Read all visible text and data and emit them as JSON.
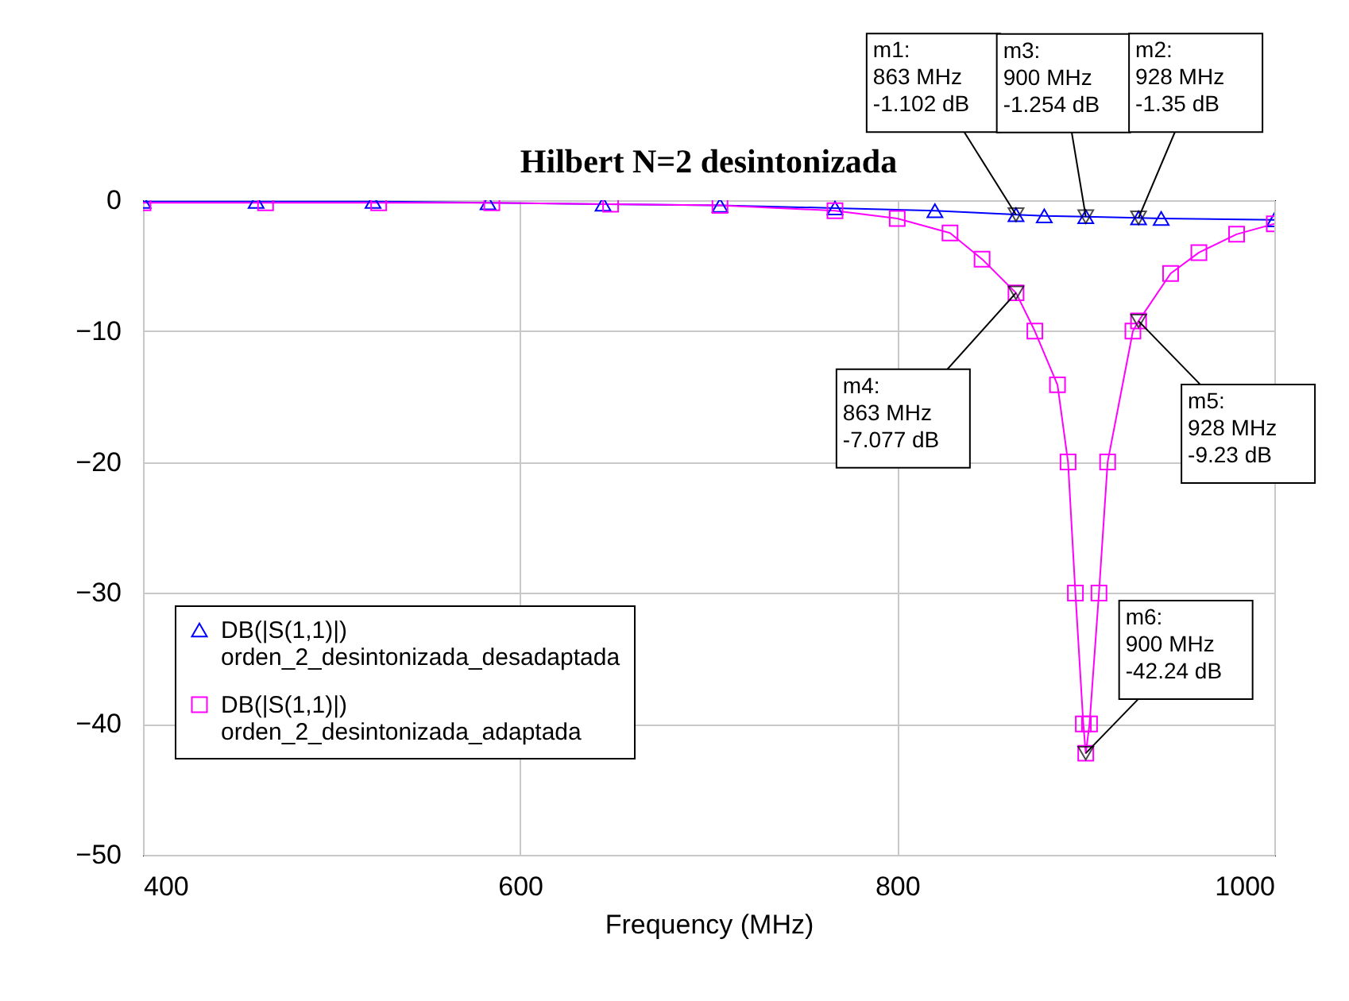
{
  "chart_data": {
    "type": "line",
    "title": "Hilbert N=2 desintonizada",
    "xlabel": "Frequency (MHz)",
    "xlim": [
      400,
      1000
    ],
    "xticks": [
      400,
      600,
      800,
      1000
    ],
    "ylim": [
      -50,
      0
    ],
    "yticks": [
      -50,
      -40,
      -30,
      -20,
      -10,
      0
    ],
    "grid": true,
    "legend": "bottom left",
    "series": [
      {
        "name": "DB(|S(1,1)|)\norden_2_desintonizada_desadaptada",
        "color": "#0000ff",
        "marker": "triangle",
        "x": [
          400,
          460,
          522,
          583,
          644,
          706,
          767,
          820,
          863,
          878,
          900,
          928,
          940,
          1000
        ],
        "values": [
          -0.1,
          -0.1,
          -0.1,
          -0.2,
          -0.3,
          -0.4,
          -0.6,
          -0.8,
          -1.102,
          -1.2,
          -1.254,
          -1.35,
          -1.4,
          -1.5
        ]
      },
      {
        "name": "DB(|S(1,1)|)\norden_2_desintonizada_adaptada",
        "color": "#ff00ff",
        "marker": "square",
        "x": [
          400,
          465,
          525,
          585,
          648,
          706,
          767,
          800,
          828,
          845,
          863,
          873,
          885,
          890.6,
          894.5,
          898.7,
          900,
          902,
          907,
          911.6,
          925,
          928,
          945,
          960,
          980,
          1000
        ],
        "values": [
          -0.2,
          -0.2,
          -0.2,
          -0.2,
          -0.3,
          -0.4,
          -0.8,
          -1.4,
          -2.5,
          -4.5,
          -7.077,
          -10,
          -14.1,
          -20,
          -30,
          -40,
          -42.24,
          -40,
          -30,
          -20,
          -10,
          -9.23,
          -5.6,
          -4,
          -2.6,
          -1.8
        ]
      }
    ],
    "annotations": [
      {
        "text": "m1:\n863 MHz\n-1.102 dB",
        "x": 863,
        "y": -1.102
      },
      {
        "text": "m3:\n900 MHz\n-1.254 dB",
        "x": 900,
        "y": -1.254
      },
      {
        "text": "m2:\n928 MHz\n-1.35 dB",
        "x": 928,
        "y": -1.35
      },
      {
        "text": "m4:\n863 MHz\n-7.077 dB",
        "x": 863,
        "y": -7.077
      },
      {
        "text": "m5:\n928 MHz\n-9.23 dB",
        "x": 928,
        "y": -9.23
      },
      {
        "text": "m6:\n900 MHz\n-42.24 dB",
        "x": 900,
        "y": -42.24
      }
    ]
  }
}
